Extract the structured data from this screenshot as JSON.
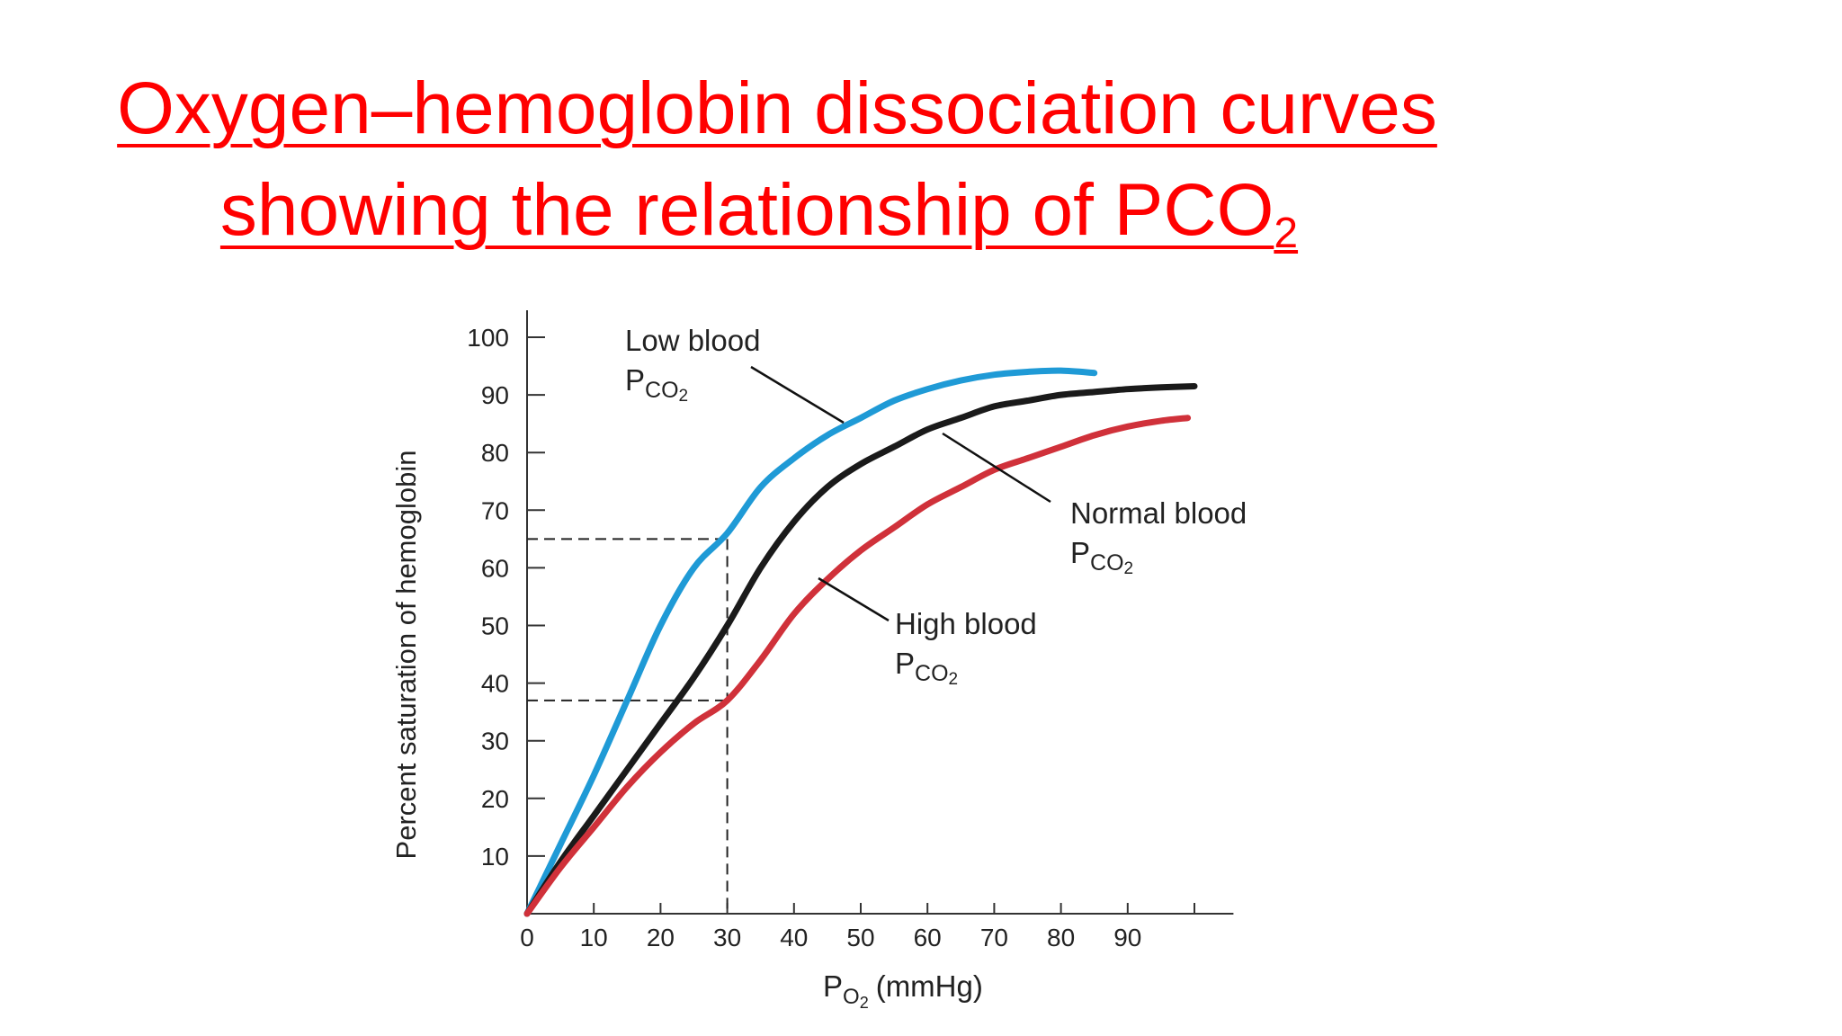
{
  "slide": {
    "title_line1": "Oxygen–hemoglobin dissociation curves ",
    "title_line2": "showing the relationship of PCO",
    "title_sub": "2",
    "title_color": "#ff0000"
  },
  "chart_data": {
    "type": "line",
    "xlabel_main": "P",
    "xlabel_sub": "O",
    "xlabel_sub2": "2",
    "xlabel_unit": "(mmHg)",
    "ylabel": "Percent saturation of hemoglobin",
    "xlim": [
      0,
      120
    ],
    "ylim": [
      0,
      100
    ],
    "xticks": [
      0,
      10,
      20,
      30,
      40,
      50,
      60,
      70,
      80,
      90
    ],
    "yticks": [
      10,
      20,
      30,
      40,
      50,
      60,
      70,
      80,
      90,
      100
    ],
    "grid": false,
    "series": [
      {
        "name": "Low blood PCO2",
        "color": "#1f9ad6",
        "label_line1": "Low blood",
        "label_p": "P",
        "label_sub": "CO",
        "label_sub2": "2",
        "points": [
          [
            0,
            0
          ],
          [
            5,
            12
          ],
          [
            10,
            24
          ],
          [
            15,
            37
          ],
          [
            20,
            50
          ],
          [
            25,
            60
          ],
          [
            30,
            66
          ],
          [
            35,
            74
          ],
          [
            40,
            79
          ],
          [
            45,
            83
          ],
          [
            50,
            86
          ],
          [
            55,
            89
          ],
          [
            60,
            91
          ],
          [
            65,
            92.5
          ],
          [
            70,
            93.5
          ],
          [
            75,
            94
          ],
          [
            80,
            94.2
          ],
          [
            85,
            93.8
          ]
        ]
      },
      {
        "name": "Normal blood PCO2",
        "color": "#1a1a1a",
        "label_line1": "Normal blood",
        "label_p": "P",
        "label_sub": "CO",
        "label_sub2": "2",
        "points": [
          [
            0,
            0
          ],
          [
            5,
            9
          ],
          [
            10,
            17
          ],
          [
            15,
            25
          ],
          [
            20,
            33
          ],
          [
            25,
            41
          ],
          [
            30,
            50
          ],
          [
            35,
            60
          ],
          [
            40,
            68
          ],
          [
            45,
            74
          ],
          [
            50,
            78
          ],
          [
            55,
            81
          ],
          [
            60,
            84
          ],
          [
            65,
            86
          ],
          [
            70,
            88
          ],
          [
            75,
            89
          ],
          [
            80,
            90
          ],
          [
            85,
            90.5
          ],
          [
            90,
            91
          ],
          [
            95,
            91.3
          ],
          [
            100,
            91.5
          ]
        ]
      },
      {
        "name": "High blood PCO2",
        "color": "#d0313a",
        "label_line1": "High blood",
        "label_p": "P",
        "label_sub": "CO",
        "label_sub2": "2",
        "points": [
          [
            0,
            0
          ],
          [
            5,
            8
          ],
          [
            10,
            15
          ],
          [
            15,
            22
          ],
          [
            20,
            28
          ],
          [
            25,
            33
          ],
          [
            30,
            37
          ],
          [
            35,
            44
          ],
          [
            40,
            52
          ],
          [
            45,
            58
          ],
          [
            50,
            63
          ],
          [
            55,
            67
          ],
          [
            60,
            71
          ],
          [
            65,
            74
          ],
          [
            70,
            77
          ],
          [
            75,
            79
          ],
          [
            80,
            81
          ],
          [
            85,
            83
          ],
          [
            90,
            84.5
          ],
          [
            95,
            85.5
          ],
          [
            99,
            86
          ]
        ]
      }
    ],
    "reference_lines": [
      {
        "x": 30,
        "y": 65
      },
      {
        "x": 30,
        "y": 37
      }
    ]
  }
}
